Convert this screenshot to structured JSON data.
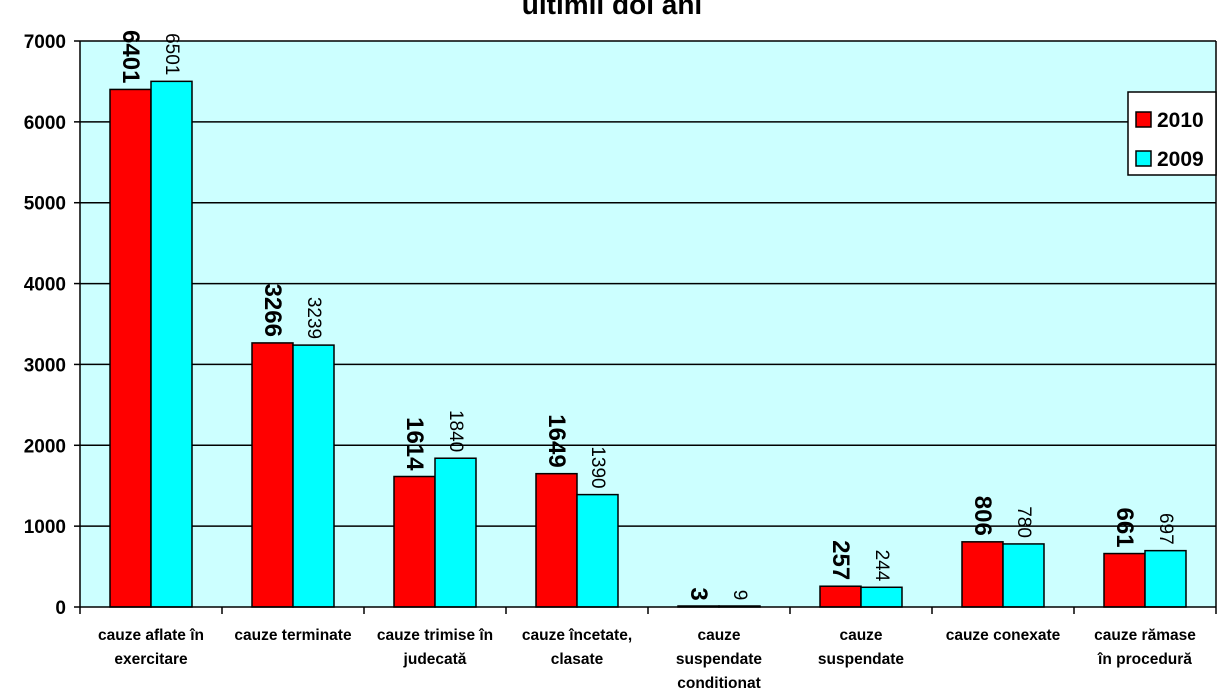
{
  "chart_data": {
    "type": "bar",
    "title": "ultimii doi ani",
    "categories": [
      [
        "cauze aflate în",
        "exercitare"
      ],
      [
        "cauze terminate"
      ],
      [
        "cauze trimise în",
        "judecată"
      ],
      [
        "cauze încetate,",
        "clasate"
      ],
      [
        "cauze",
        "suspendate",
        "conditionat"
      ],
      [
        "cauze",
        "suspendate"
      ],
      [
        "cauze conexate"
      ],
      [
        "cauze rămase",
        "în procedură"
      ]
    ],
    "series": [
      {
        "name": "2010",
        "color": "#ff0000",
        "values": [
          6401,
          3266,
          1614,
          1649,
          3,
          257,
          806,
          661
        ]
      },
      {
        "name": "2009",
        "color": "#00ffff",
        "values": [
          6501,
          3239,
          1840,
          1390,
          9,
          244,
          780,
          697
        ]
      }
    ],
    "ylim": [
      0,
      7000
    ],
    "yticks": [
      0,
      1000,
      2000,
      3000,
      4000,
      5000,
      6000,
      7000
    ],
    "grid": true,
    "legend_position": "right",
    "plot_background": "#ccffff"
  }
}
